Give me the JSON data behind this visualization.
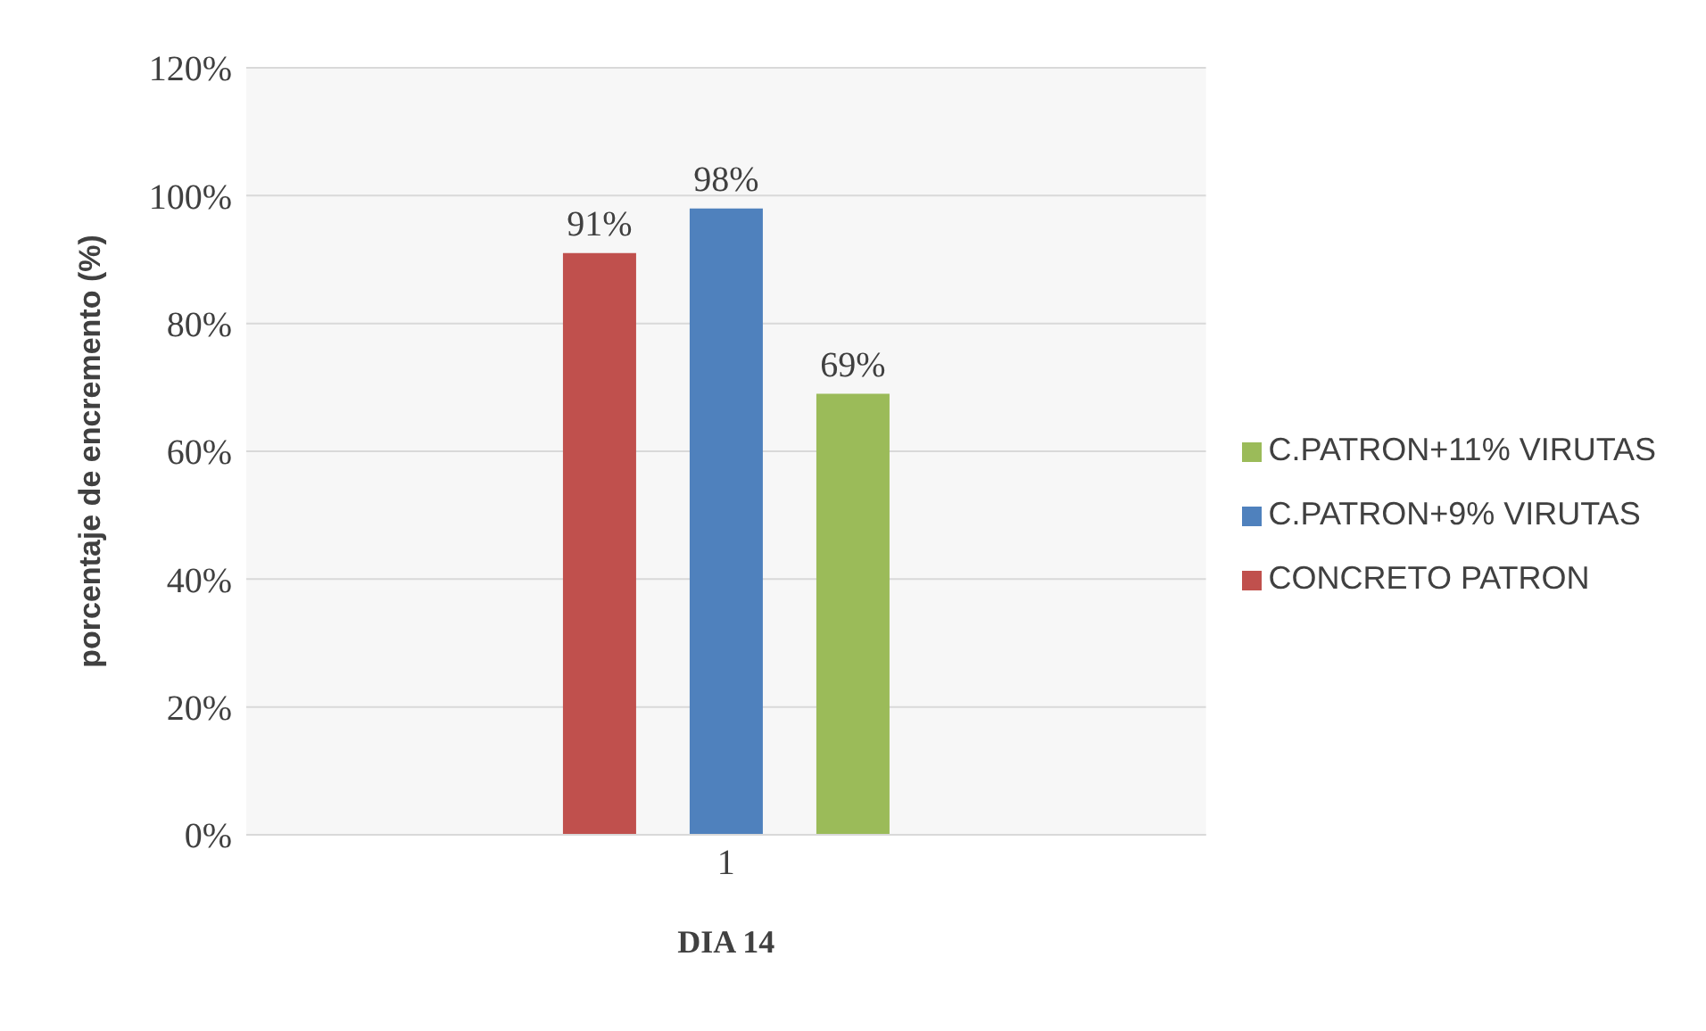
{
  "chart_data": {
    "type": "bar",
    "xlabel": "DIA 14",
    "ylabel": "porcentaje de encremento (%)",
    "categories": [
      "1"
    ],
    "series": [
      {
        "name": "CONCRETO PATRON",
        "color": "#c0504d",
        "values": [
          91
        ],
        "value_labels": [
          "91%"
        ]
      },
      {
        "name": "C.PATRON+9% VIRUTAS",
        "color": "#4f81bd",
        "values": [
          98
        ],
        "value_labels": [
          "98%"
        ]
      },
      {
        "name": "C.PATRON+11% VIRUTAS",
        "color": "#9bbb59",
        "values": [
          69
        ],
        "value_labels": [
          "69%"
        ]
      }
    ],
    "ylim": [
      0,
      120
    ],
    "yticks": [
      {
        "value": 0,
        "label": "0%"
      },
      {
        "value": 20,
        "label": "20%"
      },
      {
        "value": 40,
        "label": "40%"
      },
      {
        "value": 60,
        "label": "60%"
      },
      {
        "value": 80,
        "label": "80%"
      },
      {
        "value": 100,
        "label": "100%"
      },
      {
        "value": 120,
        "label": "120%"
      }
    ],
    "grid": "y",
    "legend": "right"
  }
}
